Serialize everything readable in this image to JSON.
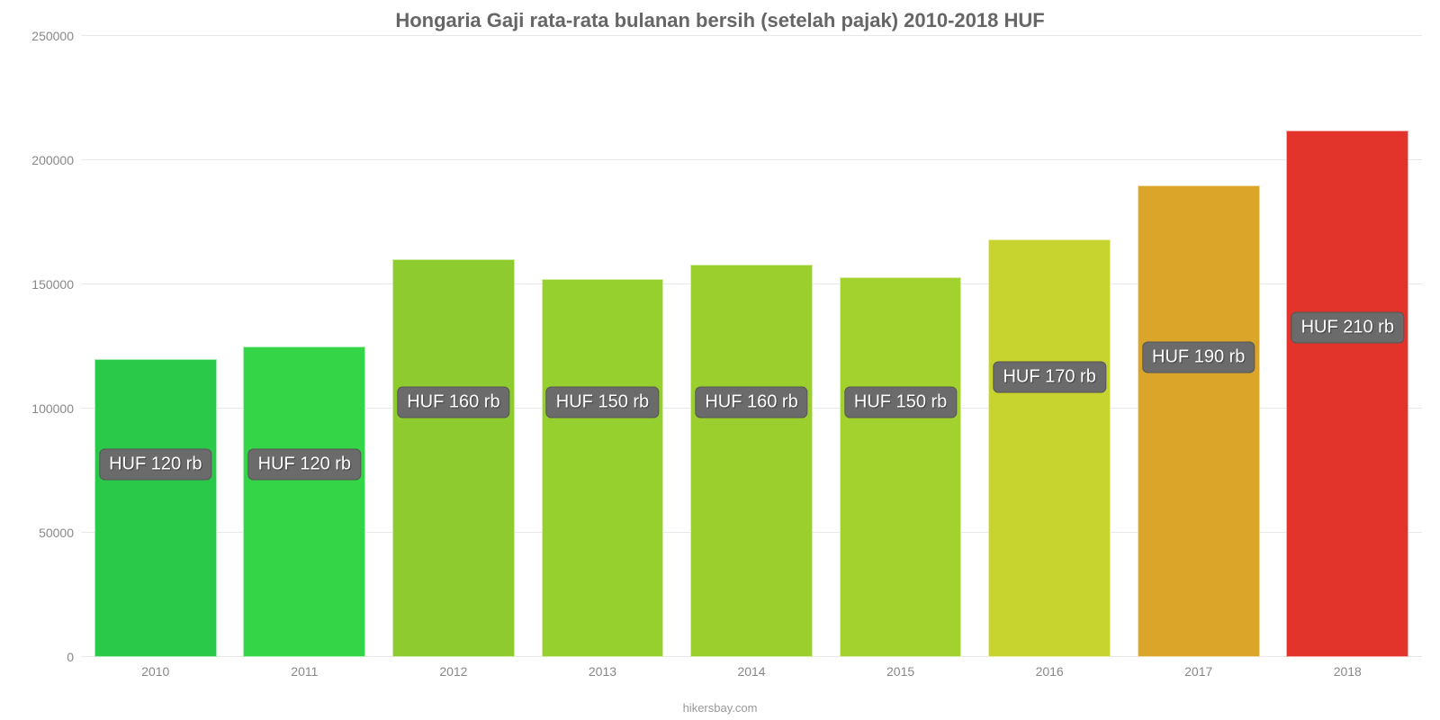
{
  "chart": {
    "type": "bar",
    "title": "Hongaria Gaji rata-rata bulanan bersih (setelah pajak) 2010-2018 HUF",
    "title_fontsize": 22,
    "title_color": "#666666",
    "attribution": "hikersbay.com",
    "attribution_color": "#999999",
    "background_color": "#ffffff",
    "grid_color": "#e8e8e8",
    "axis_label_color": "#888888",
    "axis_label_fontsize": 14,
    "ylim": [
      0,
      250000
    ],
    "yticks": [
      {
        "v": 0,
        "label": "0"
      },
      {
        "v": 50000,
        "label": "50000"
      },
      {
        "v": 100000,
        "label": "100000"
      },
      {
        "v": 150000,
        "label": "150000"
      },
      {
        "v": 200000,
        "label": "200000"
      },
      {
        "v": 250000,
        "label": "250000"
      }
    ],
    "bar_width_pct": 82,
    "badge_bg": "#6b6b6b",
    "badge_text_color": "#ffffff",
    "badge_fontsize": 20,
    "bars": [
      {
        "x": "2010",
        "value": 120000,
        "label": "HUF 120 rb",
        "color": "#2bc94a",
        "label_y": 65000
      },
      {
        "x": "2011",
        "value": 125000,
        "label": "HUF 120 rb",
        "color": "#34d647",
        "label_y": 65000
      },
      {
        "x": "2012",
        "value": 160000,
        "label": "HUF 160 rb",
        "color": "#8ecb2e",
        "label_y": 90000
      },
      {
        "x": "2013",
        "value": 152000,
        "label": "HUF 150 rb",
        "color": "#96d02e",
        "label_y": 90000
      },
      {
        "x": "2014",
        "value": 158000,
        "label": "HUF 160 rb",
        "color": "#9bcf2d",
        "label_y": 90000
      },
      {
        "x": "2015",
        "value": 153000,
        "label": "HUF 150 rb",
        "color": "#a3d22e",
        "label_y": 90000
      },
      {
        "x": "2016",
        "value": 168000,
        "label": "HUF 170 rb",
        "color": "#c7d42f",
        "label_y": 100000
      },
      {
        "x": "2017",
        "value": 190000,
        "label": "HUF 190 rb",
        "color": "#dba52a",
        "label_y": 108000
      },
      {
        "x": "2018",
        "value": 212000,
        "label": "HUF 210 rb",
        "color": "#e3342c",
        "label_y": 120000
      }
    ]
  }
}
